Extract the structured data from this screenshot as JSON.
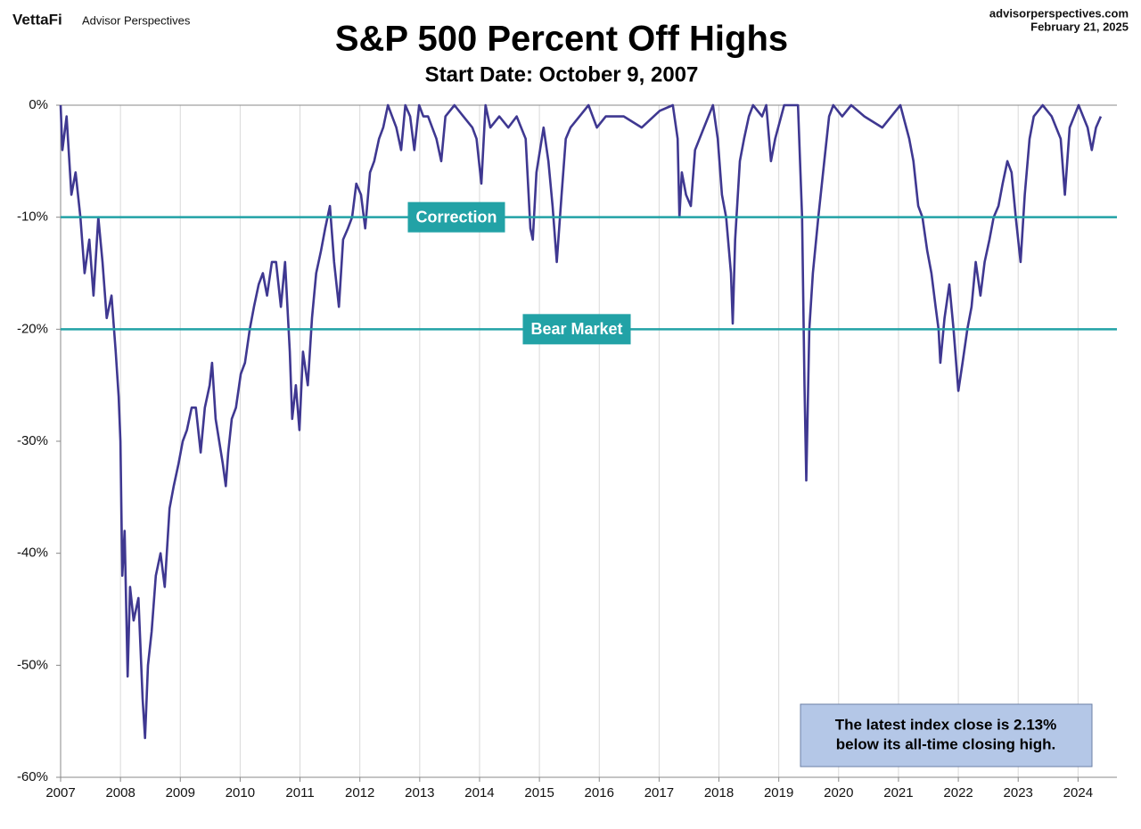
{
  "header": {
    "brand": "VettaFi",
    "brand_sub": "Advisor Perspectives",
    "site": "advisorperspectives.com",
    "date": "February 21, 2025"
  },
  "chart_data": {
    "type": "line",
    "title": "S&P 500 Percent Off Highs",
    "subtitle": "Start Date: October 9, 2007",
    "color": "#3f3891",
    "x": [
      2007.0,
      2007.03,
      2007.1,
      2007.18,
      2007.25,
      2007.33,
      2007.4,
      2007.48,
      2007.55,
      2007.63,
      2007.7,
      2007.77,
      2007.85,
      2007.92,
      2007.97,
      2008.0,
      2008.03,
      2008.07,
      2008.12,
      2008.16,
      2008.22,
      2008.3,
      2008.37,
      2008.41,
      2008.46,
      2008.52,
      2008.59,
      2008.67,
      2008.74,
      2008.82,
      2008.89,
      2008.97,
      2009.04,
      2009.11,
      2009.19,
      2009.26,
      2009.34,
      2009.41,
      2009.49,
      2009.53,
      2009.59,
      2009.65,
      2009.71,
      2009.76,
      2009.8,
      2009.86,
      2009.93,
      2010.01,
      2010.08,
      2010.16,
      2010.23,
      2010.31,
      2010.38,
      2010.45,
      2010.53,
      2010.6,
      2010.68,
      2010.75,
      2010.83,
      2010.87,
      2010.93,
      2010.99,
      2011.05,
      2011.13,
      2011.2,
      2011.27,
      2011.35,
      2011.42,
      2011.5,
      2011.57,
      2011.65,
      2011.72,
      2011.8,
      2011.87,
      2011.94,
      2012.02,
      2012.09,
      2012.17,
      2012.24,
      2012.32,
      2012.39,
      2012.47,
      2012.54,
      2012.61,
      2012.69,
      2012.76,
      2012.84,
      2012.91,
      2012.99,
      2013.06,
      2013.14,
      2013.28,
      2013.36,
      2013.43,
      2013.58,
      2013.73,
      2013.88,
      2013.95,
      2014.03,
      2014.1,
      2014.18,
      2014.33,
      2014.48,
      2014.62,
      2014.77,
      2014.85,
      2014.89,
      2014.95,
      2015.01,
      2015.07,
      2015.15,
      2015.22,
      2015.29,
      2015.37,
      2015.44,
      2015.52,
      2015.67,
      2015.82,
      2015.96,
      2016.11,
      2016.41,
      2016.71,
      2017.01,
      2017.23,
      2017.31,
      2017.34,
      2017.38,
      2017.45,
      2017.53,
      2017.6,
      2017.75,
      2017.9,
      2017.98,
      2018.05,
      2018.12,
      2018.2,
      2018.23,
      2018.27,
      2018.35,
      2018.42,
      2018.5,
      2018.57,
      2018.72,
      2018.79,
      2018.87,
      2018.94,
      2019.09,
      2019.24,
      2019.32,
      2019.39,
      2019.43,
      2019.46,
      2019.51,
      2019.57,
      2019.66,
      2019.76,
      2019.84,
      2019.91,
      2020.06,
      2020.21,
      2020.43,
      2020.73,
      2021.03,
      2021.18,
      2021.25,
      2021.33,
      2021.4,
      2021.48,
      2021.55,
      2021.62,
      2021.67,
      2021.7,
      2021.77,
      2021.85,
      2021.92,
      2022.0,
      2022.07,
      2022.15,
      2022.22,
      2022.29,
      2022.37,
      2022.44,
      2022.52,
      2022.59,
      2022.67,
      2022.74,
      2022.82,
      2022.89,
      2022.96,
      2023.04,
      2023.11,
      2023.19,
      2023.26,
      2023.41,
      2023.56,
      2023.71,
      2023.78,
      2023.86,
      2024.01,
      2024.16,
      2024.23,
      2024.3,
      2024.38
    ],
    "values": [
      0,
      -4,
      -1,
      -8,
      -6,
      -10,
      -15,
      -12,
      -17,
      -10,
      -14,
      -19,
      -17,
      -22,
      -26,
      -30,
      -42,
      -38,
      -51,
      -43,
      -46,
      -44,
      -53,
      -56.5,
      -50,
      -47,
      -42,
      -40,
      -43,
      -36,
      -34,
      -32,
      -30,
      -29,
      -27,
      -27,
      -31,
      -27,
      -25,
      -23,
      -28,
      -30,
      -32,
      -34,
      -31,
      -28,
      -27,
      -24,
      -23,
      -20,
      -18,
      -16,
      -15,
      -17,
      -14,
      -14,
      -18,
      -14,
      -22,
      -28,
      -25,
      -29,
      -22,
      -25,
      -19,
      -15,
      -13,
      -11,
      -9,
      -14,
      -18,
      -12,
      -11,
      -10,
      -7,
      -8,
      -11,
      -6,
      -5,
      -3,
      -2,
      0,
      -1,
      -2,
      -4,
      0,
      -1,
      -4,
      0,
      -1,
      -1,
      -3,
      -5,
      -1,
      0,
      -1,
      -2,
      -3,
      -7,
      0,
      -2,
      -1,
      -2,
      -1,
      -3,
      -11,
      -12,
      -6,
      -4,
      -2,
      -5,
      -9,
      -14,
      -8,
      -3,
      -2,
      -1,
      0,
      -2,
      -1,
      -1,
      -2,
      -0.5,
      0,
      -3,
      -10,
      -6,
      -8,
      -9,
      -4,
      -2,
      0,
      -3,
      -8,
      -10,
      -15,
      -19.5,
      -12,
      -5,
      -3,
      -1,
      0,
      -1,
      0,
      -5,
      -3,
      0,
      0,
      0,
      -10,
      -25,
      -33.5,
      -20,
      -15,
      -10,
      -5,
      -1,
      0,
      -1,
      0,
      -1,
      -2,
      0,
      -3,
      -5,
      -9,
      -10,
      -13,
      -15,
      -18,
      -20,
      -23,
      -19,
      -16,
      -20,
      -25.5,
      -23,
      -20,
      -18,
      -14,
      -17,
      -14,
      -12,
      -10,
      -9,
      -7,
      -5,
      -6,
      -10,
      -14,
      -8,
      -3,
      -1,
      0,
      -1,
      -3,
      -8,
      -2,
      0,
      -2,
      -4,
      -2,
      -1
    ],
    "xlim": [
      2007,
      2024.65
    ],
    "xticks": [
      2007,
      2008,
      2009,
      2010,
      2011,
      2012,
      2013,
      2014,
      2015,
      2016,
      2017,
      2018,
      2019,
      2020,
      2021,
      2022,
      2023,
      2024
    ],
    "ylim": [
      -60,
      0
    ],
    "yticks": [
      {
        "value": 0,
        "label": "0%"
      },
      {
        "value": -10,
        "label": "-10%"
      },
      {
        "value": -20,
        "label": "-20%"
      },
      {
        "value": -30,
        "label": "-30%"
      },
      {
        "value": -40,
        "label": "-40%"
      },
      {
        "value": -50,
        "label": "-50%"
      },
      {
        "value": -60,
        "label": "-60%"
      }
    ],
    "grid": true,
    "reference_lines": [
      {
        "value": -10,
        "label": "Correction",
        "color": "#22a2a6"
      },
      {
        "value": -20,
        "label": "Bear Market",
        "color": "#22a2a6"
      }
    ],
    "note": [
      "The latest index close is 2.13%",
      "below its all-time closing high."
    ]
  }
}
